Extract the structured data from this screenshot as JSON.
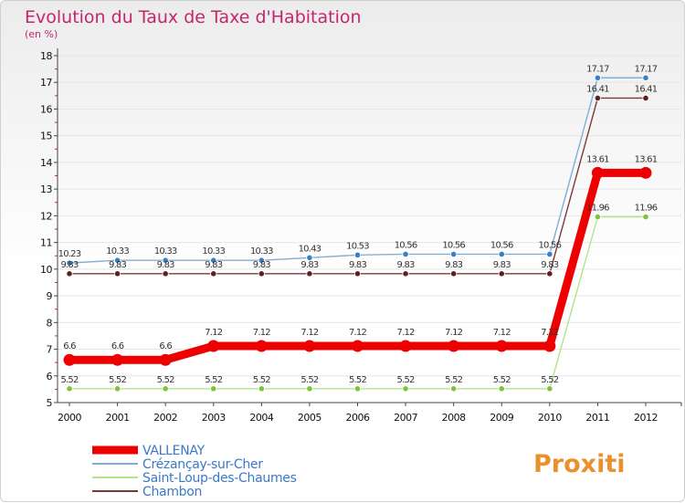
{
  "title": "Evolution du Taux de Taxe d'Habitation",
  "unit": "(en %)",
  "logo_text": "Proxiti",
  "colors": {
    "title": "#c4266e",
    "legend_text": "#3a79c7",
    "axis": "#444444",
    "grid": "#e6e6e6"
  },
  "chart_data": {
    "type": "line",
    "x": [
      "2000",
      "2001",
      "2002",
      "2003",
      "2004",
      "2005",
      "2006",
      "2007",
      "2008",
      "2009",
      "2010",
      "2011",
      "2012"
    ],
    "ylim": [
      5,
      18
    ],
    "yticks": [
      5,
      6,
      7,
      8,
      9,
      10,
      11,
      12,
      13,
      14,
      15,
      16,
      17,
      18
    ],
    "grid": true,
    "legend_position": "bottom-left",
    "series": [
      {
        "name": "VALLENAY",
        "color": "#ee0000",
        "point_color": "#ee0000",
        "emphasis": true,
        "values": [
          6.6,
          6.6,
          6.6,
          7.12,
          7.12,
          7.12,
          7.12,
          7.12,
          7.12,
          7.12,
          7.12,
          13.61,
          13.61
        ],
        "labels": [
          "6.6",
          "6.6",
          "6.6",
          "7.12",
          "7.12",
          "7.12",
          "7.12",
          "7.12",
          "7.12",
          "7.12",
          "7.12",
          "13.61",
          "13.61"
        ]
      },
      {
        "name": "Crézançay-sur-Cher",
        "color": "#82aed6",
        "point_color": "#3a7fc0",
        "values": [
          10.23,
          10.33,
          10.33,
          10.33,
          10.33,
          10.43,
          10.53,
          10.56,
          10.56,
          10.56,
          10.56,
          17.17,
          17.17
        ],
        "labels": [
          "10.23",
          "10.33",
          "10.33",
          "10.33",
          "10.33",
          "10.43",
          "10.53",
          "10.56",
          "10.56",
          "10.56",
          "10.56",
          "17.17",
          "17.17"
        ]
      },
      {
        "name": "Saint-Loup-des-Chaumes",
        "color": "#b6e28c",
        "point_color": "#7cc43a",
        "values": [
          5.52,
          5.52,
          5.52,
          5.52,
          5.52,
          5.52,
          5.52,
          5.52,
          5.52,
          5.52,
          5.52,
          11.96,
          11.96
        ],
        "labels": [
          "5.52",
          "5.52",
          "5.52",
          "5.52",
          "5.52",
          "5.52",
          "5.52",
          "5.52",
          "5.52",
          "5.52",
          "5.52",
          "11.96",
          "11.96"
        ]
      },
      {
        "name": "Chambon",
        "color": "#7a3a3a",
        "point_color": "#5e1f1f",
        "values": [
          9.83,
          9.83,
          9.83,
          9.83,
          9.83,
          9.83,
          9.83,
          9.83,
          9.83,
          9.83,
          9.83,
          16.41,
          16.41
        ],
        "labels": [
          "9.83",
          "9.83",
          "9.83",
          "9.83",
          "9.83",
          "9.83",
          "9.83",
          "9.83",
          "9.83",
          "9.83",
          "9.83",
          "16.41",
          "16.41"
        ]
      }
    ]
  }
}
